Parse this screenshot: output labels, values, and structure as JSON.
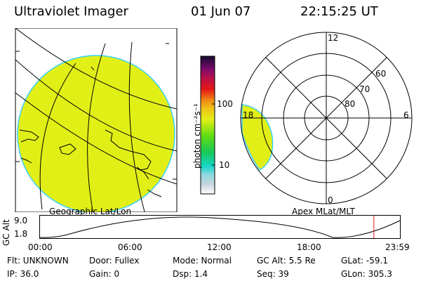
{
  "header": {
    "instrument": "Ultraviolet Imager",
    "date": "01 Jun 07",
    "time": "22:15:25 UT"
  },
  "colorbar": {
    "label": "photon cm⁻²s⁻¹",
    "tick_100": "100",
    "tick_10": "10"
  },
  "geo_map": {
    "label": "Geographic Lat/Lon",
    "fill_color": "#e2ef17"
  },
  "polar_plot": {
    "label": "Apex MLat/MLT",
    "mlt_12": "12",
    "mlt_18": "18",
    "mlt_6": "6",
    "mlt_0": "0",
    "lat_60": "60",
    "lat_70": "70",
    "lat_80": "80"
  },
  "altitude_plot": {
    "ylabel": "GC Alt",
    "ytick_high": "9.0",
    "ytick_low": "1.8",
    "xticks": [
      "00:00",
      "06:00",
      "12:00",
      "18:00",
      "23:59"
    ],
    "current_time_hours": 22.26
  },
  "status": {
    "flt": "Flt: UNKNOWN",
    "door": "Door: Fullex",
    "mode": "Mode: Normal",
    "gc_alt": "GC Alt: 5.5 Re",
    "glat": "GLat: -59.1",
    "ip": "IP: 36.0",
    "gain": "Gain:  0",
    "dsp": "Dsp:    1.4",
    "seq": "Seq: 39",
    "glon": "GLon: 305.3"
  }
}
